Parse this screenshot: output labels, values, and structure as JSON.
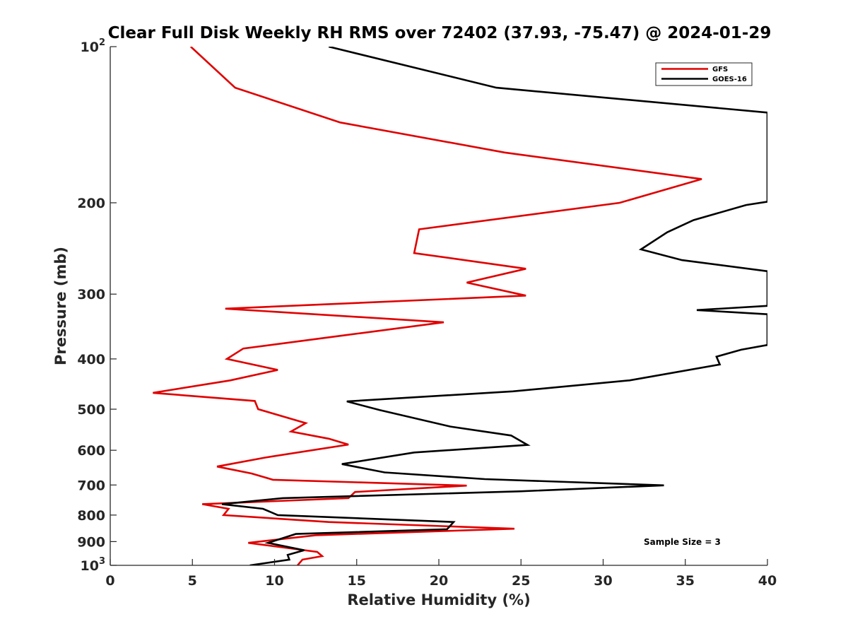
{
  "chart_data": {
    "type": "line",
    "title": "Clear Full Disk Weekly RH RMS over 72402 (37.93, -75.47) @ 2024-01-29",
    "xlabel": "Relative Humidity (%)",
    "ylabel": "Pressure (mb)",
    "xlim": [
      0,
      40
    ],
    "ylim": [
      100,
      1000
    ],
    "y_scale": "log",
    "y_reversed": true,
    "x_ticks": [
      0,
      5,
      10,
      15,
      20,
      25,
      30,
      35,
      40
    ],
    "x_tick_labels": [
      "0",
      "5",
      "10",
      "15",
      "20",
      "25",
      "30",
      "35",
      "40"
    ],
    "y_ticks": [
      100,
      200,
      300,
      400,
      500,
      600,
      700,
      800,
      900,
      1000
    ],
    "y_tick_labels": [
      {
        "base": "10",
        "sup": "2"
      },
      {
        "base": "200",
        "sup": ""
      },
      {
        "base": "300",
        "sup": ""
      },
      {
        "base": "400",
        "sup": ""
      },
      {
        "base": "500",
        "sup": ""
      },
      {
        "base": "600",
        "sup": ""
      },
      {
        "base": "700",
        "sup": ""
      },
      {
        "base": "800",
        "sup": ""
      },
      {
        "base": "900",
        "sup": ""
      },
      {
        "base": "10",
        "sup": "3"
      }
    ],
    "legend_position": "top-right",
    "annotation": "Sample Size = 3",
    "series": [
      {
        "name": "GFS",
        "color": "#e00000",
        "points": [
          {
            "x": 4.9,
            "p": 100
          },
          {
            "x": 7.6,
            "p": 120
          },
          {
            "x": 14.0,
            "p": 140
          },
          {
            "x": 24.0,
            "p": 160
          },
          {
            "x": 36.0,
            "p": 180
          },
          {
            "x": 31.0,
            "p": 200
          },
          {
            "x": 18.8,
            "p": 225
          },
          {
            "x": 18.5,
            "p": 250
          },
          {
            "x": 25.3,
            "p": 268
          },
          {
            "x": 21.7,
            "p": 285
          },
          {
            "x": 25.3,
            "p": 302
          },
          {
            "x": 7.0,
            "p": 320
          },
          {
            "x": 20.3,
            "p": 340
          },
          {
            "x": 14.3,
            "p": 360
          },
          {
            "x": 8.1,
            "p": 382
          },
          {
            "x": 7.1,
            "p": 400
          },
          {
            "x": 10.2,
            "p": 420
          },
          {
            "x": 7.3,
            "p": 440
          },
          {
            "x": 2.6,
            "p": 465
          },
          {
            "x": 8.8,
            "p": 482
          },
          {
            "x": 9.0,
            "p": 500
          },
          {
            "x": 11.9,
            "p": 532
          },
          {
            "x": 11.0,
            "p": 552
          },
          {
            "x": 13.3,
            "p": 570
          },
          {
            "x": 14.5,
            "p": 585
          },
          {
            "x": 9.4,
            "p": 620
          },
          {
            "x": 6.5,
            "p": 645
          },
          {
            "x": 8.6,
            "p": 665
          },
          {
            "x": 9.9,
            "p": 684
          },
          {
            "x": 21.7,
            "p": 702
          },
          {
            "x": 14.9,
            "p": 722
          },
          {
            "x": 14.5,
            "p": 742
          },
          {
            "x": 5.6,
            "p": 762
          },
          {
            "x": 7.2,
            "p": 778
          },
          {
            "x": 6.9,
            "p": 800
          },
          {
            "x": 13.3,
            "p": 825
          },
          {
            "x": 24.6,
            "p": 850
          },
          {
            "x": 12.5,
            "p": 875
          },
          {
            "x": 8.4,
            "p": 905
          },
          {
            "x": 12.6,
            "p": 942
          },
          {
            "x": 12.9,
            "p": 960
          },
          {
            "x": 11.7,
            "p": 975
          },
          {
            "x": 11.4,
            "p": 1000
          }
        ]
      },
      {
        "name": "GOES-16",
        "color": "#000000",
        "points": [
          {
            "x": 13.3,
            "p": 100
          },
          {
            "x": 23.5,
            "p": 120
          },
          {
            "x": 40.0,
            "p": 134
          },
          {
            "x": 40.0,
            "p": 199
          },
          {
            "x": 38.7,
            "p": 202
          },
          {
            "x": 35.5,
            "p": 216
          },
          {
            "x": 33.9,
            "p": 228
          },
          {
            "x": 32.3,
            "p": 246
          },
          {
            "x": 34.8,
            "p": 258
          },
          {
            "x": 40.0,
            "p": 271
          },
          {
            "x": 40.0,
            "p": 316
          },
          {
            "x": 35.7,
            "p": 322
          },
          {
            "x": 40.0,
            "p": 328
          },
          {
            "x": 40.0,
            "p": 376
          },
          {
            "x": 38.4,
            "p": 384
          },
          {
            "x": 36.9,
            "p": 396
          },
          {
            "x": 37.1,
            "p": 410
          },
          {
            "x": 31.6,
            "p": 440
          },
          {
            "x": 24.5,
            "p": 462
          },
          {
            "x": 14.4,
            "p": 483
          },
          {
            "x": 16.4,
            "p": 502
          },
          {
            "x": 20.7,
            "p": 540
          },
          {
            "x": 24.4,
            "p": 562
          },
          {
            "x": 25.4,
            "p": 586
          },
          {
            "x": 18.5,
            "p": 606
          },
          {
            "x": 14.1,
            "p": 638
          },
          {
            "x": 16.7,
            "p": 662
          },
          {
            "x": 22.8,
            "p": 682
          },
          {
            "x": 33.7,
            "p": 701
          },
          {
            "x": 24.9,
            "p": 720
          },
          {
            "x": 10.5,
            "p": 742
          },
          {
            "x": 6.8,
            "p": 762
          },
          {
            "x": 9.3,
            "p": 778
          },
          {
            "x": 10.2,
            "p": 800
          },
          {
            "x": 20.9,
            "p": 825
          },
          {
            "x": 20.5,
            "p": 852
          },
          {
            "x": 11.3,
            "p": 870
          },
          {
            "x": 9.6,
            "p": 905
          },
          {
            "x": 11.8,
            "p": 935
          },
          {
            "x": 10.8,
            "p": 955
          },
          {
            "x": 10.9,
            "p": 975
          },
          {
            "x": 8.5,
            "p": 1000
          }
        ]
      }
    ]
  }
}
